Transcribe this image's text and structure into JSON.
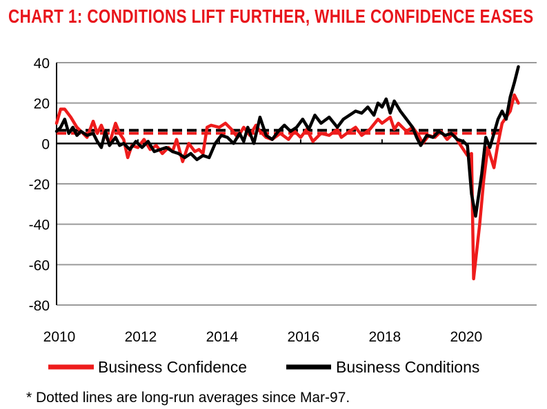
{
  "title": "CHART 1: CONDITIONS LIFT FURTHER, WHILE CONFIDENCE EASES",
  "footnote": "* Dotted lines are long-run averages since Mar-97.",
  "chart_data": {
    "type": "line",
    "title": "CHART 1: CONDITIONS LIFT FURTHER, WHILE CONFIDENCE EASES",
    "xlabel": "",
    "ylabel": "",
    "xlim": [
      2010,
      2021.8
    ],
    "ylim": [
      -80,
      40
    ],
    "yticks": [
      40,
      20,
      0,
      -20,
      -40,
      -60,
      -80
    ],
    "ytick_labels": [
      "40",
      "20",
      "0",
      "-20",
      "-40",
      "-60",
      "-80"
    ],
    "xticks": [
      2010,
      2012,
      2014,
      2016,
      2018,
      2020
    ],
    "xtick_labels": [
      "2010",
      "2012",
      "2014",
      "2016",
      "2018",
      "2020"
    ],
    "grid": true,
    "legend_position": "bottom",
    "series": [
      {
        "name": "Business Confidence",
        "color": "#ee1c1c",
        "style": "solid",
        "x": [
          2010.0,
          2010.1,
          2010.2,
          2010.35,
          2010.5,
          2010.6,
          2010.75,
          2010.9,
          2011.0,
          2011.1,
          2011.2,
          2011.3,
          2011.45,
          2011.55,
          2011.65,
          2011.75,
          2011.85,
          2012.0,
          2012.15,
          2012.3,
          2012.45,
          2012.6,
          2012.75,
          2012.85,
          2012.95,
          2013.1,
          2013.25,
          2013.4,
          2013.5,
          2013.6,
          2013.7,
          2013.8,
          2014.0,
          2014.15,
          2014.3,
          2014.45,
          2014.6,
          2014.75,
          2014.9,
          2015.0,
          2015.15,
          2015.3,
          2015.5,
          2015.7,
          2015.85,
          2016.0,
          2016.15,
          2016.3,
          2016.5,
          2016.7,
          2016.9,
          2017.0,
          2017.2,
          2017.35,
          2017.5,
          2017.7,
          2017.9,
          2018.0,
          2018.2,
          2018.3,
          2018.4,
          2018.6,
          2018.75,
          2018.9,
          2019.0,
          2019.15,
          2019.3,
          2019.45,
          2019.6,
          2019.75,
          2019.9,
          2020.0,
          2020.1,
          2020.2,
          2020.25,
          2020.4,
          2020.5,
          2020.6,
          2020.75,
          2020.85,
          2020.95,
          2021.05,
          2021.15,
          2021.25,
          2021.35
        ],
        "values": [
          10,
          17,
          17,
          13,
          8,
          6,
          3,
          11,
          5,
          9,
          4,
          0,
          10,
          5,
          2,
          -7,
          -1,
          -2,
          2,
          -3,
          -1,
          -5,
          -2,
          -4,
          2,
          -9,
          0,
          -4,
          -3,
          -5,
          8,
          9,
          8,
          10,
          7,
          3,
          8,
          4,
          9,
          6,
          3,
          2,
          5,
          2,
          6,
          3,
          7,
          1,
          5,
          4,
          7,
          3,
          6,
          8,
          4,
          7,
          12,
          10,
          13,
          7,
          10,
          6,
          8,
          4,
          0,
          4,
          3,
          6,
          2,
          5,
          0,
          -3,
          -6,
          -5,
          -67,
          -40,
          -18,
          -2,
          -12,
          0,
          10,
          13,
          16,
          24,
          20
        ]
      },
      {
        "name": "Business Conditions",
        "color": "#000000",
        "style": "solid",
        "x": [
          2010.0,
          2010.1,
          2010.2,
          2010.3,
          2010.4,
          2010.5,
          2010.6,
          2010.75,
          2010.9,
          2011.0,
          2011.1,
          2011.2,
          2011.3,
          2011.45,
          2011.55,
          2011.65,
          2011.8,
          2011.95,
          2012.1,
          2012.25,
          2012.4,
          2012.55,
          2012.7,
          2012.85,
          2013.0,
          2013.15,
          2013.3,
          2013.45,
          2013.6,
          2013.75,
          2013.9,
          2014.05,
          2014.2,
          2014.35,
          2014.5,
          2014.6,
          2014.7,
          2014.85,
          2015.0,
          2015.15,
          2015.3,
          2015.45,
          2015.6,
          2015.75,
          2015.9,
          2016.05,
          2016.2,
          2016.35,
          2016.5,
          2016.7,
          2016.9,
          2017.05,
          2017.2,
          2017.35,
          2017.5,
          2017.65,
          2017.8,
          2017.9,
          2018.0,
          2018.1,
          2018.2,
          2018.3,
          2018.45,
          2018.6,
          2018.75,
          2018.85,
          2018.95,
          2019.1,
          2019.25,
          2019.4,
          2019.55,
          2019.7,
          2019.85,
          2020.0,
          2020.1,
          2020.2,
          2020.3,
          2020.45,
          2020.55,
          2020.65,
          2020.75,
          2020.85,
          2020.95,
          2021.05,
          2021.15,
          2021.25,
          2021.35
        ],
        "values": [
          6,
          8,
          12,
          5,
          8,
          4,
          6,
          4,
          5,
          1,
          -2,
          6,
          -1,
          3,
          -1,
          0,
          -3,
          1,
          -2,
          1,
          -4,
          -3,
          -2,
          -4,
          -5,
          -7,
          -5,
          -8,
          -6,
          -7,
          0,
          4,
          3,
          0,
          5,
          1,
          8,
          0,
          13,
          4,
          2,
          6,
          9,
          6,
          8,
          12,
          7,
          14,
          10,
          13,
          8,
          12,
          14,
          16,
          15,
          18,
          14,
          20,
          18,
          22,
          15,
          21,
          16,
          12,
          8,
          3,
          -1,
          4,
          3,
          6,
          4,
          5,
          2,
          1,
          -1,
          -25,
          -36,
          -15,
          3,
          -2,
          5,
          12,
          16,
          12,
          23,
          30,
          38
        ]
      }
    ],
    "reference_lines": [
      {
        "series": "Business Confidence",
        "style": "dashed",
        "value": 5,
        "x_from": 2010,
        "x_to": 2020.95
      },
      {
        "series": "Business Conditions",
        "style": "dashed",
        "value": 6.5,
        "x_from": 2010,
        "x_to": 2020.95
      }
    ]
  }
}
